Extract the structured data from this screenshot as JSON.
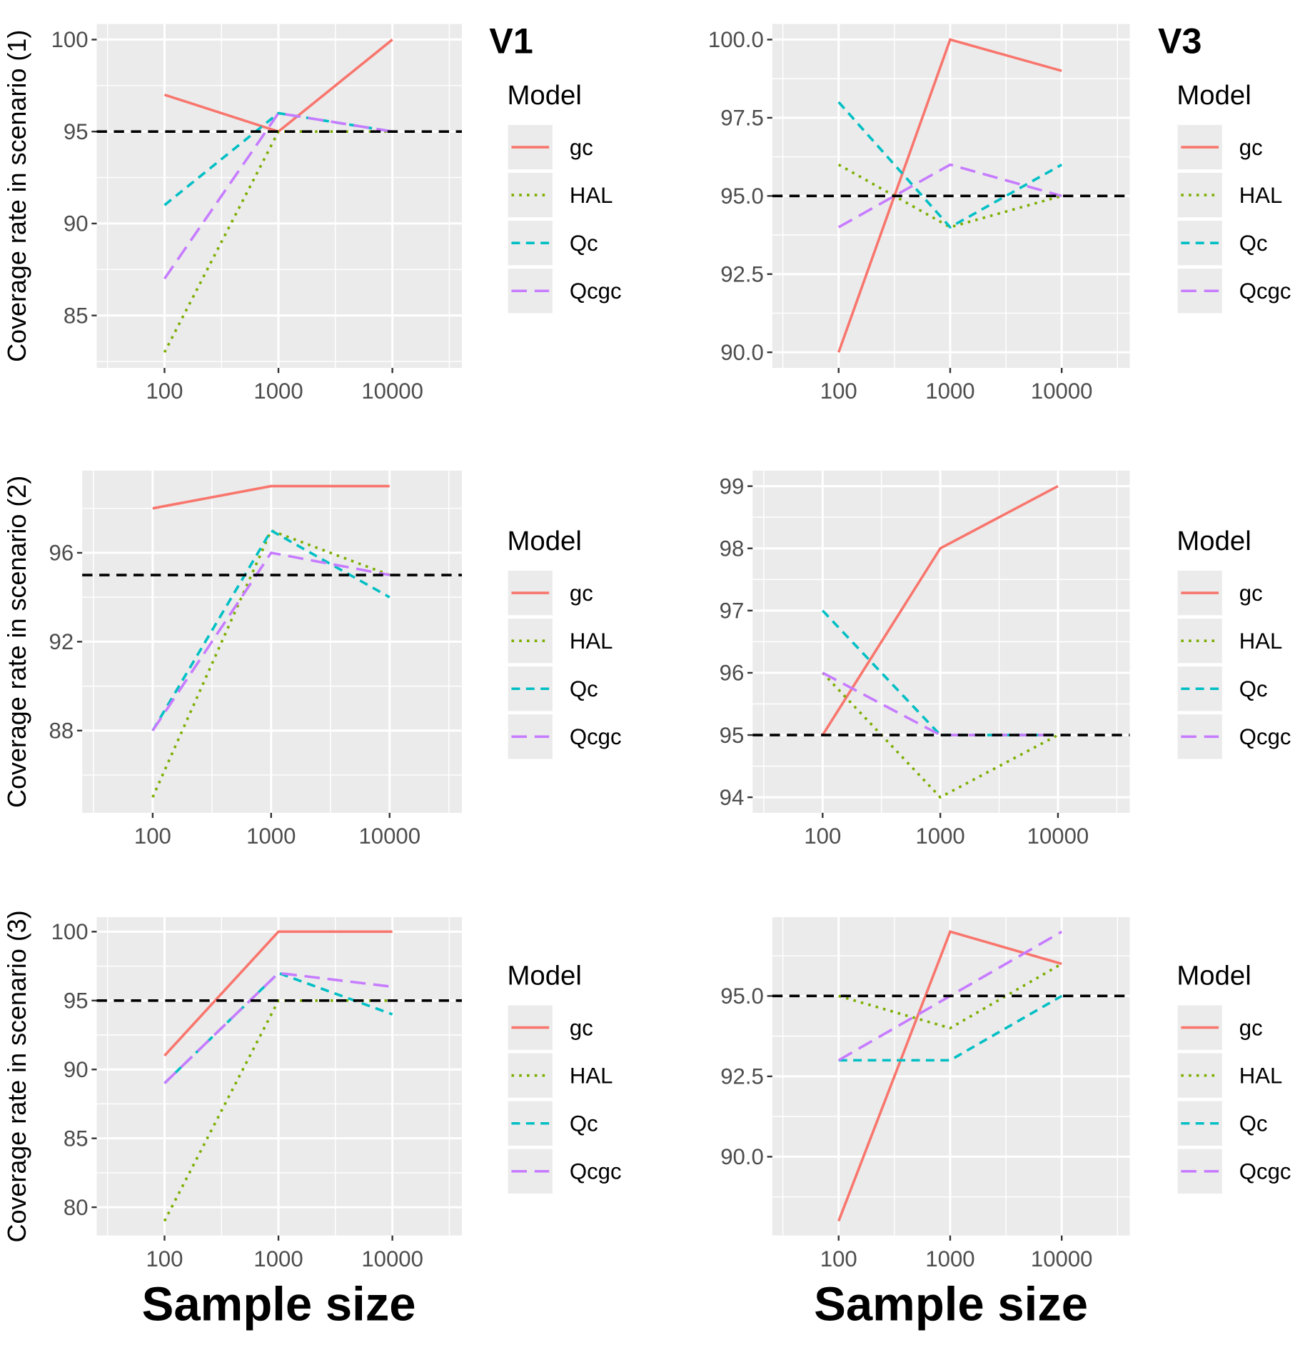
{
  "colors": {
    "gc": "#F8766D",
    "HAL": "#7CAE00",
    "Qc": "#00BFC4",
    "Qcgc": "#C77CFF",
    "panel_bg": "#EBEBEB",
    "reference": "#000000"
  },
  "x_label": "Sample size",
  "column_titles": [
    "V1",
    "V3"
  ],
  "row_labels": [
    "Coverage rate in scenario (1)",
    "Coverage rate in scenario (2)",
    "Coverage rate in scenario (3)"
  ],
  "legend": {
    "title": "Model",
    "entries": [
      "gc",
      "HAL",
      "Qc",
      "Qcgc"
    ],
    "linetypes": [
      "solid",
      "dotted",
      "dashed",
      "longdash"
    ]
  },
  "chart_data": [
    {
      "type": "line",
      "column": "V1",
      "row": 1,
      "x": [
        100,
        1000,
        10000
      ],
      "x_scale": "log",
      "x_ticks": [
        "100",
        "1000",
        "10000"
      ],
      "ylim": [
        82.15,
        100.85
      ],
      "y_ticks": [
        "85",
        "90",
        "95",
        "100"
      ],
      "reference_line": 95,
      "grid": true,
      "series": [
        {
          "name": "gc",
          "values": [
            97,
            95,
            100
          ]
        },
        {
          "name": "HAL",
          "values": [
            83,
            95,
            95
          ]
        },
        {
          "name": "Qc",
          "values": [
            91,
            96,
            95
          ]
        },
        {
          "name": "Qcgc",
          "values": [
            87,
            96,
            95
          ]
        }
      ]
    },
    {
      "type": "line",
      "column": "V3",
      "row": 1,
      "x": [
        100,
        1000,
        10000
      ],
      "x_scale": "log",
      "x_ticks": [
        "100",
        "1000",
        "10000"
      ],
      "ylim": [
        89.5,
        100.5
      ],
      "y_ticks": [
        "90.0",
        "92.5",
        "95.0",
        "97.5",
        "100.0"
      ],
      "reference_line": 95,
      "grid": true,
      "series": [
        {
          "name": "gc",
          "values": [
            90,
            100,
            99
          ]
        },
        {
          "name": "HAL",
          "values": [
            96,
            94,
            95
          ]
        },
        {
          "name": "Qc",
          "values": [
            98,
            94,
            96
          ]
        },
        {
          "name": "Qcgc",
          "values": [
            94,
            96,
            95
          ]
        }
      ]
    },
    {
      "type": "line",
      "column": "V1",
      "row": 2,
      "x": [
        100,
        1000,
        10000
      ],
      "x_scale": "log",
      "x_ticks": [
        "100",
        "1000",
        "10000"
      ],
      "ylim": [
        84.3,
        99.7
      ],
      "y_ticks": [
        "88",
        "92",
        "96"
      ],
      "reference_line": 95,
      "grid": true,
      "series": [
        {
          "name": "gc",
          "values": [
            98,
            99,
            99
          ]
        },
        {
          "name": "HAL",
          "values": [
            85,
            97,
            95
          ]
        },
        {
          "name": "Qc",
          "values": [
            88,
            97,
            94
          ]
        },
        {
          "name": "Qcgc",
          "values": [
            88,
            96,
            95
          ]
        }
      ]
    },
    {
      "type": "line",
      "column": "V3",
      "row": 2,
      "x": [
        100,
        1000,
        10000
      ],
      "x_scale": "log",
      "x_ticks": [
        "100",
        "1000",
        "10000"
      ],
      "ylim": [
        93.75,
        99.25
      ],
      "y_ticks": [
        "94",
        "95",
        "96",
        "97",
        "98",
        "99"
      ],
      "reference_line": 95,
      "grid": true,
      "series": [
        {
          "name": "gc",
          "values": [
            95,
            98,
            99
          ]
        },
        {
          "name": "HAL",
          "values": [
            96,
            94,
            95
          ]
        },
        {
          "name": "Qc",
          "values": [
            97,
            95,
            95
          ]
        },
        {
          "name": "Qcgc",
          "values": [
            96,
            95,
            95
          ]
        }
      ]
    },
    {
      "type": "line",
      "column": "V1",
      "row": 3,
      "x": [
        100,
        1000,
        10000
      ],
      "x_scale": "log",
      "x_ticks": [
        "100",
        "1000",
        "10000"
      ],
      "ylim": [
        77.95,
        101.05
      ],
      "y_ticks": [
        "80",
        "85",
        "90",
        "95",
        "100"
      ],
      "reference_line": 95,
      "grid": true,
      "series": [
        {
          "name": "gc",
          "values": [
            91,
            100,
            100
          ]
        },
        {
          "name": "HAL",
          "values": [
            79,
            95,
            95
          ]
        },
        {
          "name": "Qc",
          "values": [
            89,
            97,
            94
          ]
        },
        {
          "name": "Qcgc",
          "values": [
            89,
            97,
            96
          ]
        }
      ]
    },
    {
      "type": "line",
      "column": "V3",
      "row": 3,
      "x": [
        100,
        1000,
        10000
      ],
      "x_scale": "log",
      "x_ticks": [
        "100",
        "1000",
        "10000"
      ],
      "ylim": [
        87.55,
        97.45
      ],
      "y_ticks": [
        "90.0",
        "92.5",
        "95.0"
      ],
      "reference_line": 95,
      "grid": true,
      "series": [
        {
          "name": "gc",
          "values": [
            88,
            97,
            96
          ]
        },
        {
          "name": "HAL",
          "values": [
            95,
            94,
            96
          ]
        },
        {
          "name": "Qc",
          "values": [
            93,
            93,
            95
          ]
        },
        {
          "name": "Qcgc",
          "values": [
            93,
            95,
            97
          ]
        }
      ]
    }
  ]
}
